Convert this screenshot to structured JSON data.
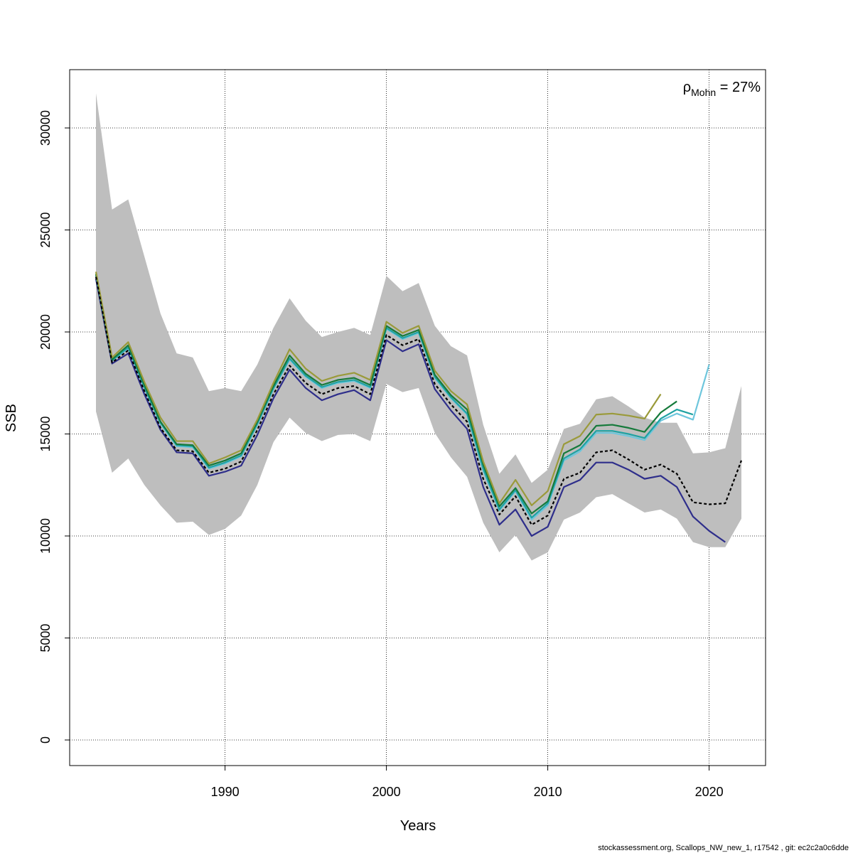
{
  "chart_data": {
    "type": "line",
    "xlabel": "Years",
    "ylabel": "SSB",
    "xlim": [
      1982,
      2022
    ],
    "ylim": [
      0,
      32000
    ],
    "x_ticks": [
      1990,
      2000,
      2010,
      2020
    ],
    "y_ticks": [
      0,
      5000,
      10000,
      15000,
      20000,
      25000,
      30000
    ],
    "grid": true,
    "annotation": {
      "symbol": "ρ",
      "subscript": "Mohn",
      "text": " = 27%"
    },
    "footer": "stockassessment.org, Scallops_NW_new_1, r17542 , git: ec2c2a0c6dde",
    "band": {
      "color": "#bebebe",
      "x": [
        1982,
        1983,
        1984,
        1985,
        1986,
        1987,
        1988,
        1989,
        1990,
        1991,
        1992,
        1993,
        1994,
        1995,
        1996,
        1997,
        1998,
        1999,
        2000,
        2001,
        2002,
        2003,
        2004,
        2005,
        2006,
        2007,
        2008,
        2009,
        2010,
        2011,
        2012,
        2013,
        2014,
        2015,
        2016,
        2017,
        2018,
        2019,
        2020,
        2021,
        2022
      ],
      "lower": [
        16100,
        13100,
        13800,
        12500,
        11500,
        10650,
        10700,
        10050,
        10350,
        11000,
        12500,
        14600,
        15800,
        15050,
        14650,
        14950,
        15000,
        14650,
        17450,
        17050,
        17250,
        15050,
        13850,
        12900,
        10650,
        9200,
        10050,
        8800,
        9200,
        10800,
        11150,
        11900,
        12050,
        11600,
        11150,
        11300,
        10850,
        9700,
        9450,
        9450,
        10850
      ],
      "upper": [
        31700,
        26000,
        26500,
        23700,
        20900,
        18950,
        18750,
        17100,
        17250,
        17100,
        18400,
        20200,
        21650,
        20550,
        19750,
        20000,
        20200,
        19850,
        22750,
        22000,
        22400,
        20300,
        19300,
        18850,
        15450,
        13050,
        14000,
        12600,
        13250,
        15250,
        15500,
        16700,
        16850,
        16350,
        15800,
        15550,
        15550,
        14050,
        14100,
        14300,
        17350
      ]
    },
    "series": [
      {
        "color": "#000000",
        "dashed": true,
        "x_start": 1982,
        "values": [
          22700,
          18500,
          19100,
          17100,
          15300,
          14200,
          14150,
          13100,
          13300,
          13650,
          15200,
          16950,
          18350,
          17500,
          16950,
          17250,
          17350,
          16950,
          19850,
          19350,
          19650,
          17450,
          16450,
          15600,
          12800,
          11050,
          11950,
          10550,
          11000,
          12800,
          13100,
          14100,
          14200,
          13750,
          13250,
          13500,
          13050,
          11650,
          11550,
          11600,
          13700
        ]
      },
      {
        "color": "#2e2e8b",
        "dashed": false,
        "x_start": 1982,
        "values": [
          22600,
          18450,
          18950,
          16950,
          15200,
          14100,
          14050,
          12950,
          13150,
          13450,
          14950,
          16750,
          18150,
          17250,
          16650,
          16950,
          17150,
          16650,
          19600,
          19050,
          19400,
          17200,
          16150,
          15250,
          12400,
          10550,
          11300,
          10000,
          10450,
          12400,
          12750,
          13600,
          13600,
          13250,
          12800,
          12950,
          12400,
          10950,
          10250,
          9700
        ]
      },
      {
        "color": "#6ec6dc",
        "dashed": false,
        "x_start": 1982,
        "values": [
          22800,
          18600,
          19200,
          17250,
          15500,
          14400,
          14350,
          13300,
          13550,
          13900,
          15450,
          17200,
          18650,
          17800,
          17250,
          17500,
          17600,
          17250,
          20150,
          19650,
          19950,
          17750,
          16750,
          15950,
          13200,
          11250,
          12200,
          10800,
          11500,
          13700,
          14150,
          15050,
          15050,
          14900,
          14700,
          15650,
          16000,
          15700,
          18400
        ]
      },
      {
        "color": "#1fa2a2",
        "dashed": false,
        "x_start": 1982,
        "values": [
          22800,
          18600,
          19250,
          17300,
          15550,
          14450,
          14400,
          13350,
          13600,
          13950,
          15500,
          17250,
          18700,
          17850,
          17300,
          17550,
          17650,
          17300,
          20200,
          19700,
          20000,
          17800,
          16800,
          16000,
          13300,
          11300,
          12250,
          10900,
          11600,
          13800,
          14250,
          15150,
          15150,
          15000,
          14800,
          15750,
          16200,
          15950
        ]
      },
      {
        "color": "#167a3b",
        "dashed": false,
        "x_start": 1982,
        "values": [
          22850,
          18650,
          19350,
          17400,
          15600,
          14500,
          14450,
          13450,
          13700,
          14050,
          15600,
          17350,
          18850,
          17950,
          17400,
          17650,
          17750,
          17400,
          20300,
          19800,
          20100,
          17900,
          16900,
          16200,
          13500,
          11450,
          12350,
          11100,
          11700,
          14050,
          14450,
          15400,
          15450,
          15300,
          15100,
          16050,
          16600
        ]
      },
      {
        "color": "#9a9a3a",
        "dashed": false,
        "x_start": 1982,
        "values": [
          22950,
          18750,
          19500,
          17550,
          15800,
          14650,
          14650,
          13550,
          13850,
          14200,
          15700,
          17500,
          19150,
          18200,
          17600,
          17850,
          18000,
          17650,
          20500,
          19950,
          20300,
          18100,
          17100,
          16450,
          13650,
          11600,
          12750,
          11500,
          12200,
          14500,
          14900,
          15950,
          16000,
          15900,
          15750,
          16950
        ]
      }
    ]
  }
}
